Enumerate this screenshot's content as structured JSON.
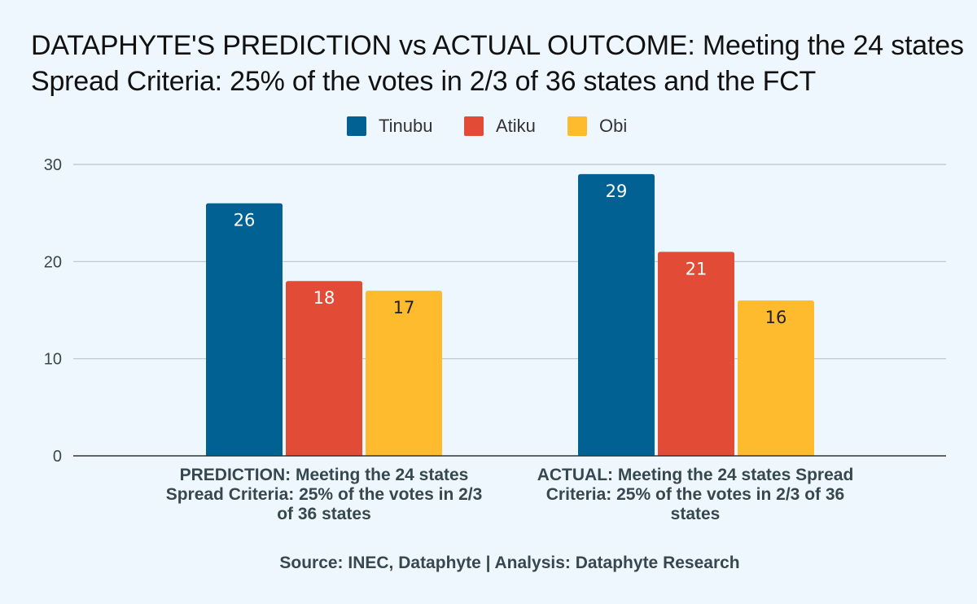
{
  "chart_data": {
    "type": "bar",
    "title_lines": [
      "DATAPHYTE'S PREDICTION vs ACTUAL OUTCOME: Meeting the 24 states",
      "Spread Criteria: 25% of the votes in 2/3 of 36 states and the FCT"
    ],
    "categories": [
      "PREDICTION: Meeting the 24 states Spread Criteria: 25% of the votes in 2/3 of 36 states",
      "ACTUAL: Meeting the 24 states Spread Criteria: 25% of the votes in 2/3 of 36 states"
    ],
    "category_label_lines": [
      [
        "PREDICTION: Meeting the 24 states",
        "Spread Criteria: 25% of the votes in 2/3",
        "of 36 states"
      ],
      [
        "ACTUAL: Meeting the 24 states Spread",
        "Criteria: 25% of the votes in 2/3 of 36",
        "states"
      ]
    ],
    "series": [
      {
        "name": "Tinubu",
        "values": [
          26,
          29
        ],
        "color": "#006192",
        "label_color": "#ffffff"
      },
      {
        "name": "Atiku",
        "values": [
          18,
          21
        ],
        "color": "#e24c37",
        "label_color": "#ffffff"
      },
      {
        "name": "Obi",
        "values": [
          17,
          16
        ],
        "color": "#fdbb2d",
        "label_color": "#222222"
      }
    ],
    "y_ticks": [
      0,
      10,
      20,
      30
    ],
    "ylim": [
      0,
      30
    ],
    "grid": true,
    "legend_position": "top-center",
    "source": "Source: INEC, Dataphyte | Analysis: Dataphyte Research"
  }
}
